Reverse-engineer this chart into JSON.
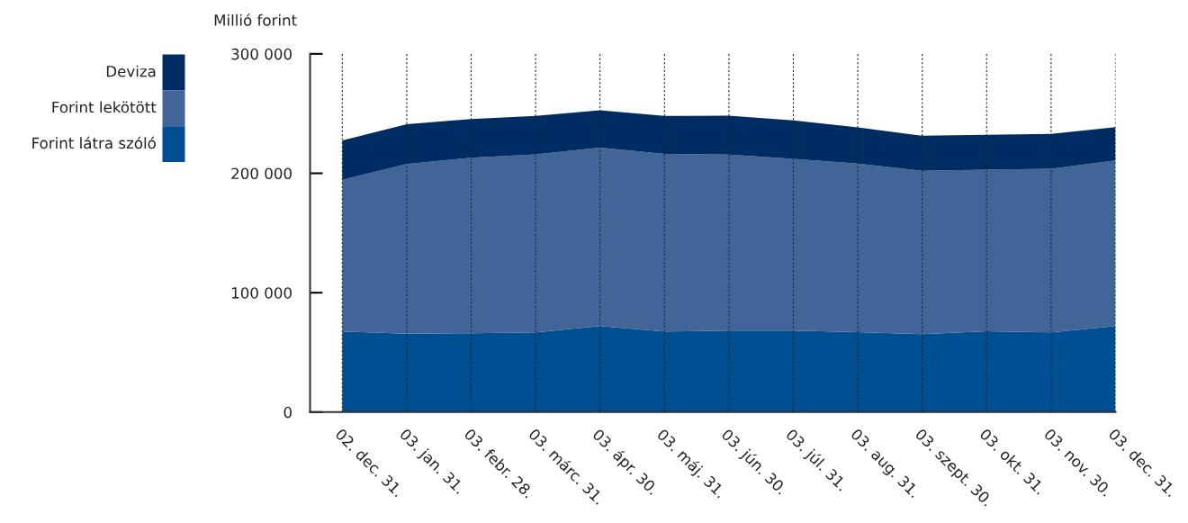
{
  "chart_data": {
    "type": "area",
    "stacked": true,
    "ylabel": "Millió forint",
    "categories": [
      "02. dec. 31.",
      "03. jan. 31.",
      "03. febr. 28.",
      "03. márc. 31.",
      "03. ápr. 30.",
      "03. máj. 31.",
      "03. jún. 30.",
      "03. júl. 31.",
      "03. aug. 31.",
      "03. szept. 30.",
      "03. okt. 31.",
      "03. nov. 30.",
      "03. dec. 31."
    ],
    "series": [
      {
        "name": "Forint látra szóló",
        "color": "#004f93",
        "values": [
          67500,
          65700,
          66000,
          66700,
          72000,
          67500,
          68200,
          68200,
          67000,
          65200,
          67800,
          66700,
          72000
        ]
      },
      {
        "name": "Forint lekötött",
        "color": "#426598",
        "values": [
          127000,
          142100,
          147100,
          149100,
          149400,
          148800,
          147400,
          143800,
          141100,
          136800,
          135200,
          137100,
          138800
        ]
      },
      {
        "name": "Deviza",
        "color": "#002c64",
        "values": [
          33100,
          33200,
          32400,
          32200,
          31300,
          31700,
          32600,
          32200,
          30300,
          29400,
          29200,
          29100,
          27900
        ]
      }
    ],
    "ylim": [
      0,
      300000
    ],
    "yticks": [
      0,
      {
        "value": 100000,
        "label": "100 000"
      },
      {
        "value": 200000,
        "label": "200 000"
      },
      {
        "value": 300000,
        "label": "300 000"
      }
    ],
    "grid": "x",
    "legend": "left"
  }
}
